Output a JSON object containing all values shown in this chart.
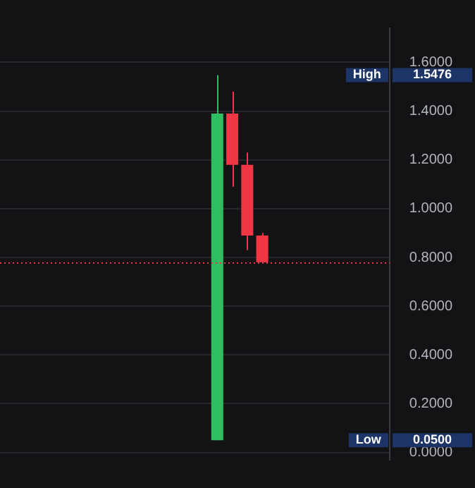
{
  "chart_data": {
    "type": "candlestick",
    "categories": [
      null,
      null,
      null,
      null,
      null,
      null,
      null,
      null,
      null,
      null,
      null,
      null,
      null,
      null,
      null,
      null,
      null,
      null,
      null,
      null,
      null,
      null,
      null,
      null,
      null,
      null
    ],
    "ohlc": [
      null,
      null,
      null,
      null,
      null,
      null,
      null,
      null,
      null,
      null,
      null,
      null,
      null,
      null,
      [
        0.05,
        1.5476,
        0.05,
        1.39
      ],
      [
        1.39,
        1.48,
        1.09,
        1.18
      ],
      [
        1.18,
        1.23,
        0.83,
        0.89
      ],
      [
        0.89,
        0.9,
        0.78,
        0.78
      ],
      null,
      null,
      null,
      null,
      null,
      null,
      null,
      null
    ],
    "colors": [
      null,
      null,
      null,
      null,
      null,
      null,
      null,
      null,
      null,
      null,
      null,
      null,
      null,
      null,
      "#2ebd60",
      "#f23645",
      "#f23645",
      "#f23645",
      null,
      null,
      null,
      null,
      null,
      null,
      null,
      null
    ],
    "ylim": [
      -0.03,
      1.74
    ],
    "yticks": [
      {
        "value": 0,
        "label": "0.0000"
      },
      {
        "value": 0.2,
        "label": "0.2000"
      },
      {
        "value": 0.4,
        "label": "0.4000"
      },
      {
        "value": 0.6,
        "label": "0.6000"
      },
      {
        "value": 0.8,
        "label": "0.8000"
      },
      {
        "value": 1,
        "label": "1.0000"
      },
      {
        "value": 1.2,
        "label": "1.2000"
      },
      {
        "value": 1.4,
        "label": "1.4000"
      },
      {
        "value": 1.6,
        "label": "1.6000"
      }
    ],
    "grid": "y",
    "tick_labels": "y",
    "ref_lines": [
      {
        "axis": "y",
        "value": 0.78,
        "color": "#f23645",
        "line_style": "dotted"
      }
    ],
    "annotations": [
      {
        "text": "High",
        "y": 1.5476
      },
      "1.5476",
      {
        "text": "Low",
        "y": 0.05
      },
      "0.0500"
    ]
  }
}
